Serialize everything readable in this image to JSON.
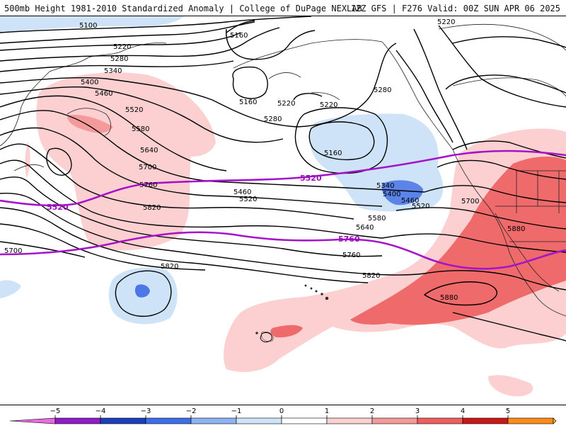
{
  "header": {
    "left_text": "500mb Height 1981-2010 Standardized Anomaly | College of DuPage NEXLAB",
    "right_text": "12Z GFS | F276 Valid: 00Z SUN APR 06 2025"
  },
  "contour_labels": {
    "c5100": "5100",
    "c5160a": "5160",
    "c5160b": "5160",
    "c5160c": "5160",
    "c5220a": "5220",
    "c5220b": "5220",
    "c5220c": "5220",
    "c5220d": "5220",
    "c5280a": "5280",
    "c5280b": "5280",
    "c5280c": "5280",
    "c5340a": "5340",
    "c5340b": "5340",
    "c5400a": "5400",
    "c5400b": "5400",
    "c5460a": "5460",
    "c5460b": "5460",
    "c5460c": "5460",
    "c5520a": "5520",
    "c5520b": "5520",
    "c5520c": "5520",
    "c5580a": "5580",
    "c5580b": "5580",
    "c5640a": "5640",
    "c5640b": "5640",
    "c5700a": "5700",
    "c5700b": "5700",
    "c5700c": "5700",
    "c5760a": "5760",
    "c5760b": "5760",
    "c5820a": "5820",
    "c5820b": "5820",
    "c5820c": "5820",
    "c5880a": "5880",
    "c5880b": "5880"
  },
  "climo_labels": {
    "c5520": "5520",
    "c5760": "5760"
  },
  "colorbar": {
    "ticks": [
      "−5",
      "−4",
      "−3",
      "−2",
      "−1",
      "0",
      "1",
      "2",
      "3",
      "4",
      "5"
    ],
    "colors": [
      "#e86be0",
      "#8e1cc7",
      "#1a3fb8",
      "#3e6ee8",
      "#8fb3f2",
      "#cfe3f8",
      "#ffffff",
      "#fcd0d0",
      "#f59a9a",
      "#ef5f5f",
      "#c81818",
      "#ff8c1a",
      "#ffc423"
    ]
  }
}
